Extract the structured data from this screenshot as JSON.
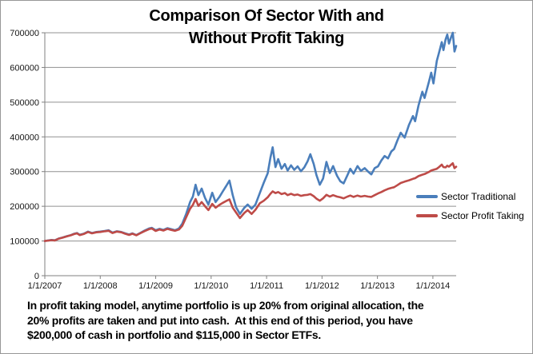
{
  "chart": {
    "title_line1": "Comparison Of Sector With and",
    "title_line2": "Without Profit Taking",
    "legend_traditional": "Sector Traditional",
    "legend_profit": "Sector Profit Taking",
    "caption_lines": [
      "In profit taking model, anytime portfolio is up 20% from original allocation, the",
      "20% profits are taken and put into cash.  At this end of this period, you have",
      "$200,000 of cash in portfolio and $115,000 in Sector ETFs."
    ],
    "colors": {
      "traditional_blue": "#4a7ebb",
      "profit_red": "#be4b48",
      "gridline": "#909090",
      "axis": "#808080",
      "tick_text": "#151515",
      "title_text": "#000000",
      "frame_border": "#979797"
    }
  },
  "chart_data": {
    "type": "line",
    "title": "Comparison Of Sector With and Without Profit Taking",
    "xlabel": "",
    "ylabel": "",
    "xlim": [
      2007.0,
      2014.42
    ],
    "ylim": [
      0,
      700000
    ],
    "grid": "horizontal",
    "legend_position": "inside-right",
    "x_ticks": [
      2007,
      2008,
      2009,
      2010,
      2011,
      2012,
      2013,
      2014
    ],
    "x_tick_labels": [
      "1/1/2007",
      "1/1/2008",
      "1/1/2009",
      "1/1/2010",
      "1/1/2011",
      "1/1/2012",
      "1/1/2013",
      "1/1/2014"
    ],
    "y_ticks": [
      0,
      100000,
      200000,
      300000,
      400000,
      500000,
      600000,
      700000
    ],
    "y_tick_labels": [
      "0",
      "100000",
      "200000",
      "300000",
      "400000",
      "500000",
      "600000",
      "700000"
    ],
    "x": [
      2007.0,
      2007.06,
      2007.12,
      2007.18,
      2007.25,
      2007.32,
      2007.4,
      2007.47,
      2007.53,
      2007.58,
      2007.63,
      2007.7,
      2007.78,
      2007.85,
      2007.93,
      2008.0,
      2008.08,
      2008.15,
      2008.22,
      2008.3,
      2008.38,
      2008.45,
      2008.52,
      2008.58,
      2008.65,
      2008.72,
      2008.8,
      2008.88,
      2008.93,
      2009.0,
      2009.07,
      2009.14,
      2009.21,
      2009.28,
      2009.35,
      2009.42,
      2009.48,
      2009.55,
      2009.62,
      2009.67,
      2009.72,
      2009.77,
      2009.83,
      2009.89,
      2009.95,
      2010.02,
      2010.08,
      2010.15,
      2010.21,
      2010.27,
      2010.33,
      2010.39,
      2010.45,
      2010.52,
      2010.6,
      2010.66,
      2010.73,
      2010.8,
      2010.88,
      2010.95,
      2011.02,
      2011.07,
      2011.11,
      2011.16,
      2011.21,
      2011.27,
      2011.33,
      2011.38,
      2011.44,
      2011.5,
      2011.56,
      2011.62,
      2011.68,
      2011.74,
      2011.79,
      2011.85,
      2011.9,
      2011.96,
      2012.02,
      2012.08,
      2012.14,
      2012.2,
      2012.27,
      2012.33,
      2012.39,
      2012.46,
      2012.51,
      2012.57,
      2012.64,
      2012.7,
      2012.77,
      2012.83,
      2012.89,
      2012.95,
      2013.01,
      2013.07,
      2013.13,
      2013.19,
      2013.25,
      2013.3,
      2013.36,
      2013.42,
      2013.49,
      2013.57,
      2013.64,
      2013.68,
      2013.74,
      2013.81,
      2013.85,
      2013.93,
      2013.97,
      2014.01,
      2014.07,
      2014.11,
      2014.16,
      2014.19,
      2014.23,
      2014.26,
      2014.29,
      2014.33,
      2014.36,
      2014.39,
      2014.42
    ],
    "series": [
      {
        "name": "Sector Traditional",
        "color": "#4a7ebb",
        "values": [
          100000,
          101500,
          103000,
          102000,
          107000,
          110000,
          114000,
          117000,
          121000,
          123000,
          118000,
          121000,
          127000,
          123000,
          126000,
          127000,
          129000,
          131000,
          124000,
          128000,
          126000,
          122000,
          118500,
          122000,
          117000,
          123000,
          130000,
          136000,
          138000,
          131000,
          135000,
          132000,
          137000,
          134000,
          131000,
          136000,
          150000,
          178000,
          212000,
          228000,
          262000,
          232000,
          251000,
          224000,
          205000,
          239000,
          212000,
          227000,
          243000,
          258000,
          274000,
          232000,
          197000,
          178000,
          196000,
          205000,
          193000,
          205000,
          239000,
          268000,
          295000,
          340000,
          370000,
          313000,
          336000,
          308000,
          322000,
          303000,
          318000,
          305000,
          315000,
          301000,
          312000,
          330000,
          350000,
          322000,
          290000,
          262000,
          280000,
          328000,
          296000,
          316000,
          288000,
          272000,
          266000,
          290000,
          308000,
          294000,
          316000,
          302000,
          310000,
          300000,
          292000,
          310000,
          315000,
          332000,
          345000,
          338000,
          358000,
          365000,
          390000,
          412000,
          398000,
          435000,
          460000,
          445000,
          490000,
          530000,
          512000,
          560000,
          585000,
          554000,
          619000,
          642000,
          673000,
          650000,
          681000,
          695000,
          669000,
          688000,
          700000,
          646000,
          662000
        ]
      },
      {
        "name": "Sector Profit Taking",
        "color": "#be4b48",
        "values": [
          100000,
          101000,
          102500,
          101500,
          106500,
          109500,
          113500,
          116500,
          120000,
          122000,
          117000,
          120000,
          126000,
          122000,
          125000,
          126000,
          128000,
          129500,
          123000,
          127000,
          125000,
          121000,
          117500,
          121000,
          116500,
          122000,
          128500,
          134000,
          136000,
          129000,
          133000,
          130000,
          135000,
          132000,
          129500,
          133000,
          144000,
          168000,
          193000,
          204000,
          221000,
          201000,
          212000,
          200000,
          189000,
          207000,
          196000,
          204000,
          210000,
          215000,
          220000,
          196000,
          182000,
          166000,
          181000,
          189000,
          178000,
          190000,
          209000,
          216000,
          226000,
          236000,
          243000,
          238000,
          241000,
          235000,
          238000,
          232000,
          236000,
          232000,
          234000,
          230000,
          232000,
          233000,
          235000,
          229000,
          222000,
          216000,
          223000,
          233000,
          228000,
          232000,
          228000,
          226000,
          223000,
          228000,
          231000,
          227000,
          231000,
          228000,
          230000,
          228000,
          227000,
          232000,
          237000,
          241000,
          246000,
          250000,
          253000,
          255000,
          261000,
          267000,
          271000,
          275000,
          279000,
          281000,
          287000,
          291000,
          293000,
          299000,
          303000,
          305000,
          308000,
          313000,
          320000,
          313000,
          312000,
          317000,
          314000,
          320000,
          324000,
          310000,
          314000
        ]
      }
    ]
  }
}
